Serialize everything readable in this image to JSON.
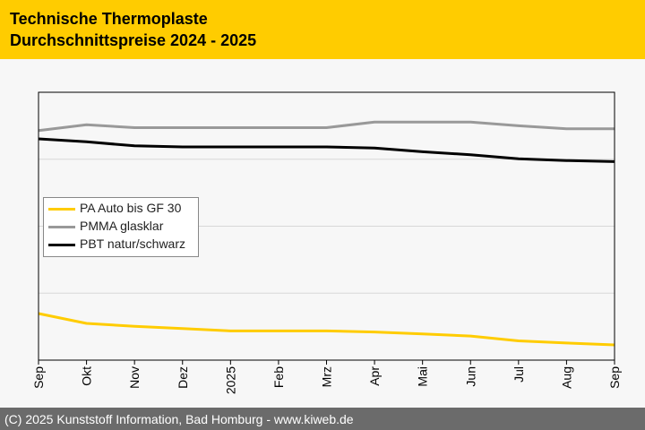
{
  "header": {
    "title_line1": "Technische Thermoplaste",
    "title_line2": "Durchschnittspreise 2024 - 2025"
  },
  "footer": {
    "text": "(C) 2025 Kunststoff Information, Bad Homburg - www.kiweb.de"
  },
  "colors": {
    "header_bg": "#ffcc00",
    "footer_bg": "#6b6b6b",
    "series_pa": "#ffcc00",
    "series_pmma": "#999999",
    "series_pbt": "#000000"
  },
  "chart_data": {
    "type": "line",
    "title": "Technische Thermoplaste Durchschnittspreise 2024 - 2025",
    "xlabel": "",
    "ylabel": "",
    "categories": [
      "Sep",
      "Okt",
      "Nov",
      "Dez",
      "2025",
      "Feb",
      "Mrz",
      "Apr",
      "Mai",
      "Jun",
      "Jul",
      "Aug",
      "Sep"
    ],
    "ylim": [
      0,
      100
    ],
    "gridlines": [
      25,
      50,
      75
    ],
    "grid": true,
    "legend_position": "middle-left",
    "series": [
      {
        "name": "PA Auto bis GF 30",
        "color": "#ffcc00",
        "values": [
          17.4,
          13.7,
          12.6,
          11.8,
          10.9,
          10.9,
          10.9,
          10.5,
          9.8,
          9.0,
          7.2,
          6.4,
          5.7
        ]
      },
      {
        "name": "PMMA glasklar",
        "color": "#999999",
        "values": [
          85.7,
          87.9,
          86.8,
          86.8,
          86.8,
          86.8,
          86.8,
          88.9,
          88.9,
          88.9,
          87.5,
          86.4,
          86.4
        ]
      },
      {
        "name": "PBT natur/schwarz",
        "color": "#000000",
        "values": [
          82.6,
          81.5,
          80.0,
          79.6,
          79.6,
          79.6,
          79.6,
          79.2,
          77.8,
          76.7,
          75.2,
          74.5,
          74.1
        ]
      }
    ]
  }
}
